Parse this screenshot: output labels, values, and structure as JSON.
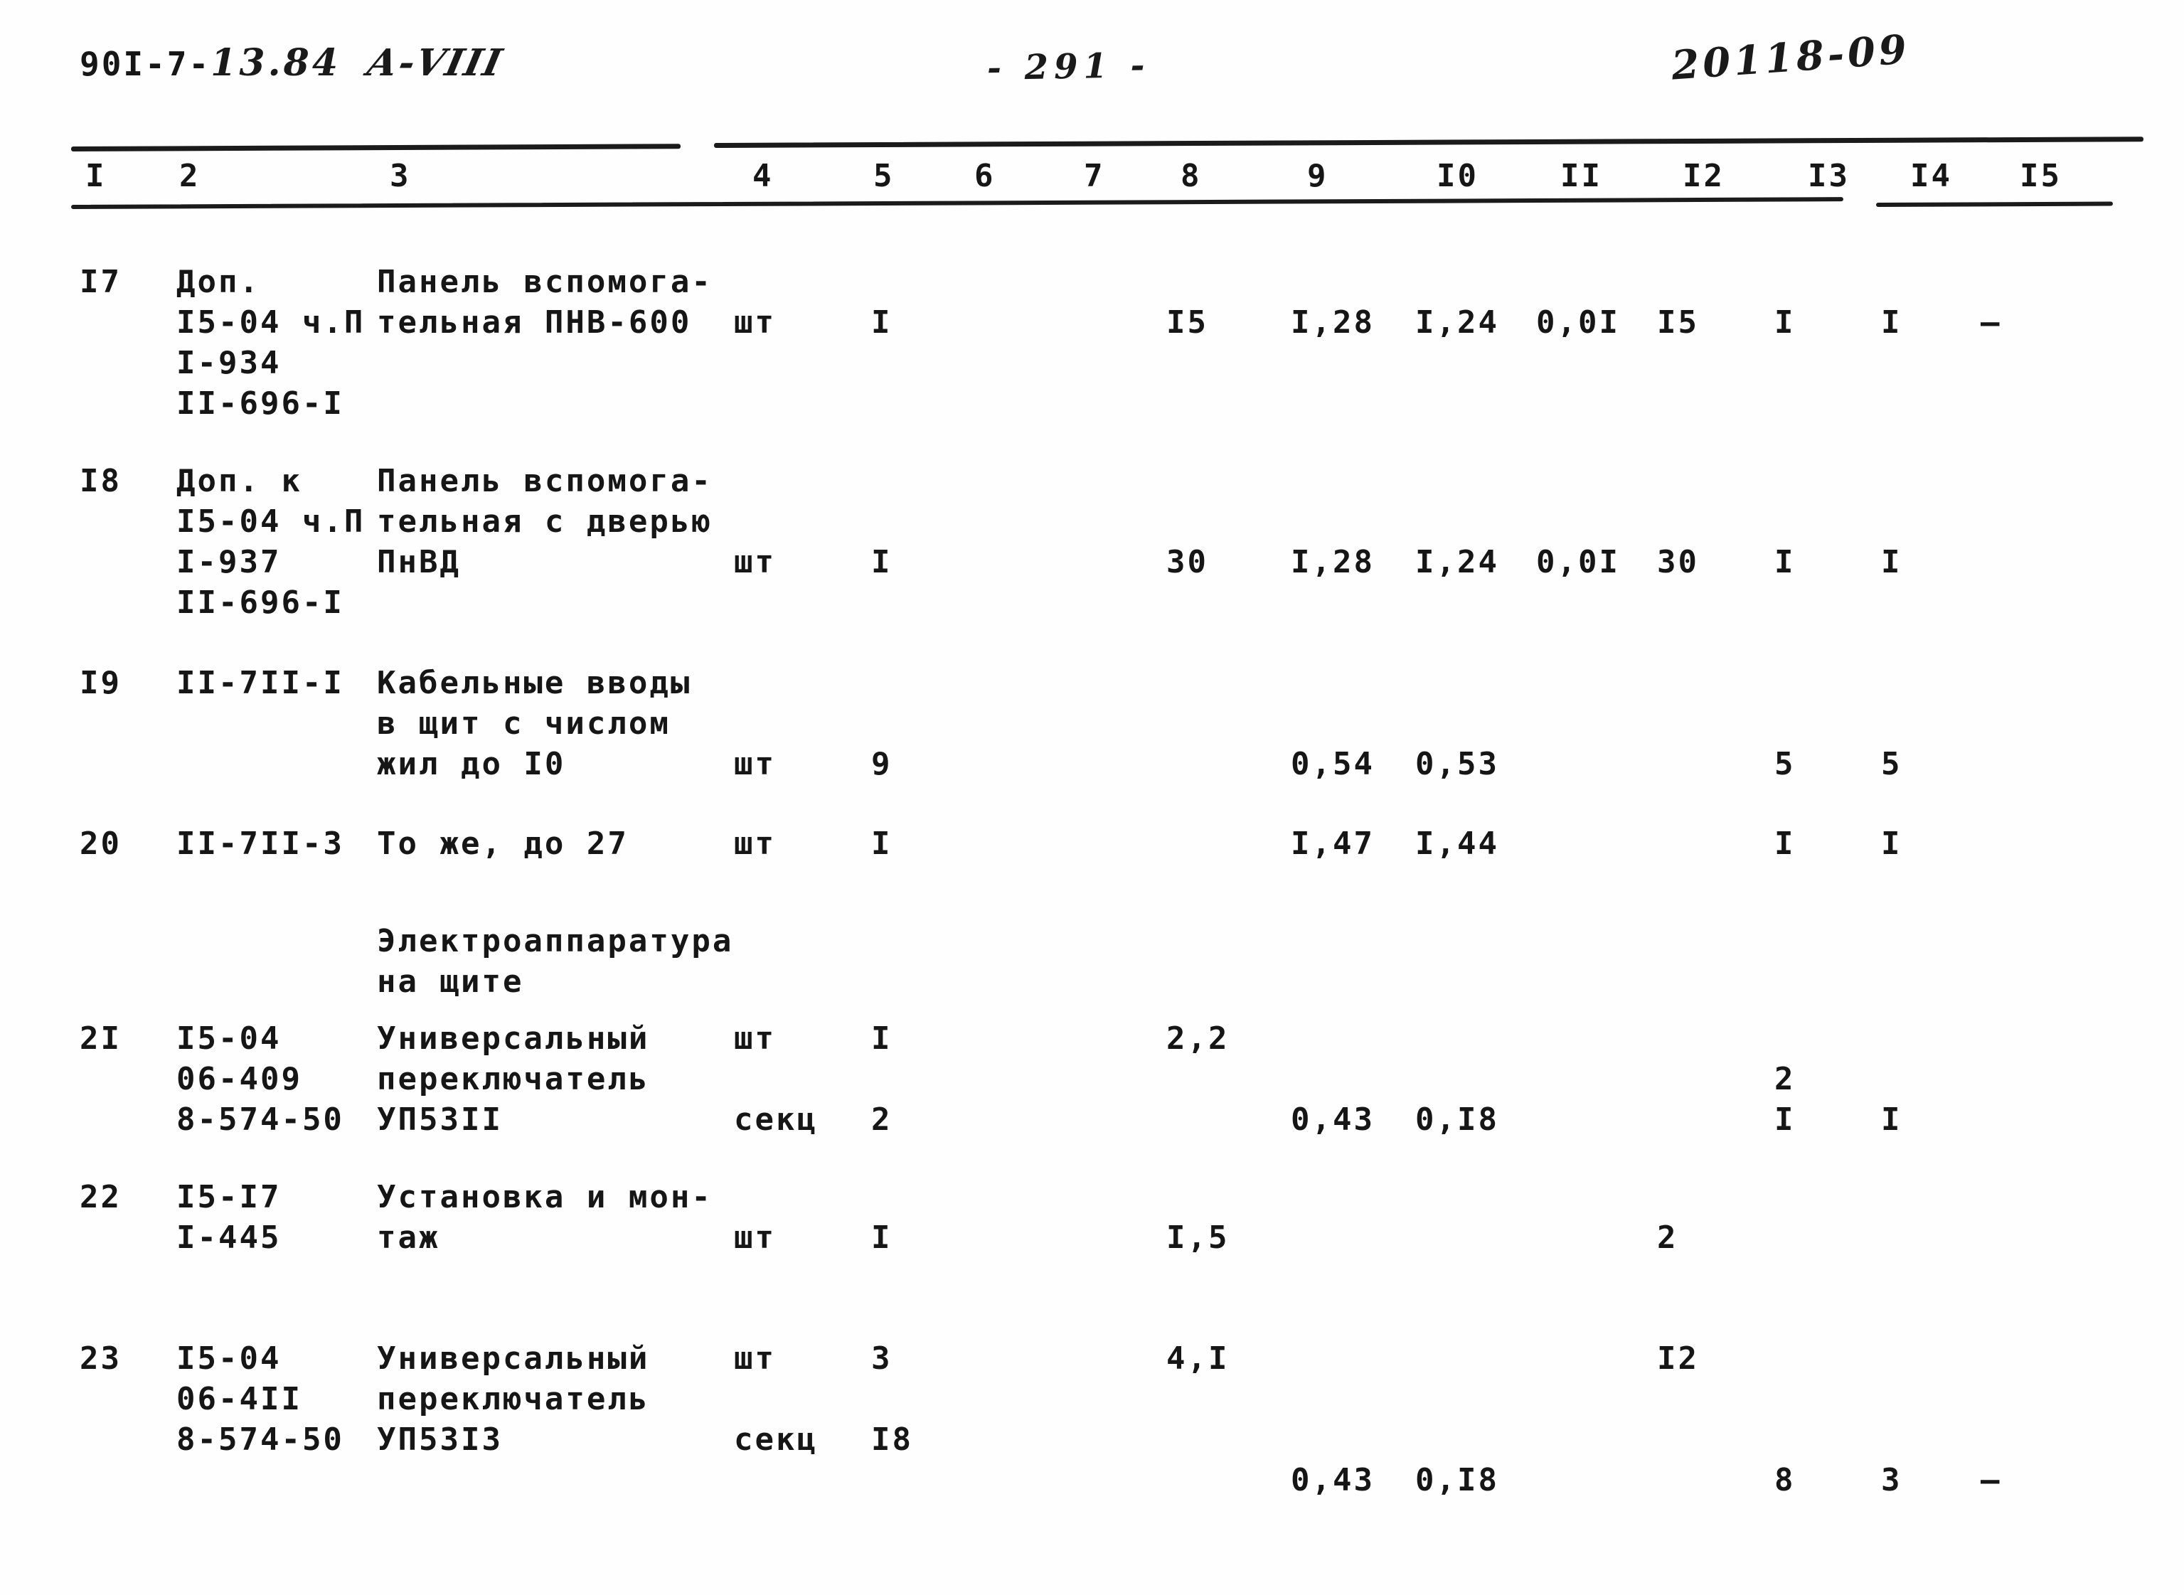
{
  "header": {
    "doc_prefix": "90I-7-",
    "doc_suffix": "13.84",
    "annex": "А-VIII",
    "page_number": "- 291 -",
    "stamp": "20118-09"
  },
  "table": {
    "columns": [
      "I",
      "2",
      "3",
      "4",
      "5",
      "6",
      "7",
      "8",
      "9",
      "I0",
      "II",
      "I2",
      "I3",
      "I4",
      "I5"
    ],
    "rows": [
      {
        "id": "row-17",
        "cells": {
          "1": [
            "I7"
          ],
          "2": [
            "Доп.",
            "I5-04 ч.П",
            "I-934",
            "II-696-I"
          ],
          "3": [
            "Панель вспомога-",
            "тельная ПНВ-600"
          ],
          "4": [
            "",
            "шт"
          ],
          "5": [
            "",
            "I"
          ],
          "8": [
            "",
            "I5"
          ],
          "9": [
            "",
            "I,28"
          ],
          "10": [
            "",
            "I,24"
          ],
          "11": [
            "",
            "0,0I"
          ],
          "12": [
            "",
            "I5"
          ],
          "13": [
            "",
            "I"
          ],
          "14": [
            "",
            "I"
          ],
          "15": [
            "",
            "—"
          ]
        }
      },
      {
        "id": "row-18",
        "cells": {
          "1": [
            "I8"
          ],
          "2": [
            "Доп. к",
            "I5-04 ч.П",
            "I-937",
            "II-696-I"
          ],
          "3": [
            "Панель вспомога-",
            "тельная с дверью",
            "ПнВД"
          ],
          "4": [
            "",
            "",
            "шт"
          ],
          "5": [
            "",
            "",
            "I"
          ],
          "8": [
            "",
            "",
            "30"
          ],
          "9": [
            "",
            "",
            "I,28"
          ],
          "10": [
            "",
            "",
            "I,24"
          ],
          "11": [
            "",
            "",
            "0,0I"
          ],
          "12": [
            "",
            "",
            "30"
          ],
          "13": [
            "",
            "",
            "I"
          ],
          "14": [
            "",
            "",
            "I"
          ]
        }
      },
      {
        "id": "row-19",
        "cells": {
          "1": [
            "I9"
          ],
          "2": [
            "II-7II-I"
          ],
          "3": [
            "Кабельные вводы",
            "в щит с числом",
            "жил до I0"
          ],
          "4": [
            "",
            "",
            "шт"
          ],
          "5": [
            "",
            "",
            "9"
          ],
          "9": [
            "",
            "",
            "0,54"
          ],
          "10": [
            "",
            "",
            "0,53"
          ],
          "13": [
            "",
            "",
            "5"
          ],
          "14": [
            "",
            "",
            "5"
          ]
        }
      },
      {
        "id": "row-20",
        "cells": {
          "1": [
            "20"
          ],
          "2": [
            "II-7II-3"
          ],
          "3": [
            "То же, до 27"
          ],
          "4": [
            "шт"
          ],
          "5": [
            "I"
          ],
          "9": [
            "I,47"
          ],
          "10": [
            "I,44"
          ],
          "13": [
            "I"
          ],
          "14": [
            "I"
          ]
        }
      },
      {
        "id": "section-heading",
        "cells": {
          "3": [
            "Электроаппаратура",
            "на щите"
          ]
        }
      },
      {
        "id": "row-21",
        "cells": {
          "1": [
            "2I"
          ],
          "2": [
            "I5-04",
            "06-409",
            "8-574-50"
          ],
          "3": [
            "Универсальный",
            "переключатель",
            "УП53II"
          ],
          "4": [
            "шт",
            "",
            "секц"
          ],
          "5": [
            "I",
            "",
            "2"
          ],
          "8": [
            "2,2"
          ],
          "9": [
            "",
            "",
            "0,43"
          ],
          "10": [
            "",
            "",
            "0,I8"
          ],
          "13": [
            "",
            "2",
            "I"
          ],
          "14": [
            "",
            "",
            "I"
          ]
        }
      },
      {
        "id": "row-22",
        "cells": {
          "1": [
            "22"
          ],
          "2": [
            "I5-I7",
            "I-445"
          ],
          "3": [
            "Установка и мон-",
            "таж"
          ],
          "4": [
            "",
            "шт"
          ],
          "5": [
            "",
            "I"
          ],
          "8": [
            "",
            "I,5"
          ],
          "12": [
            "",
            "2"
          ]
        }
      },
      {
        "id": "row-23",
        "cells": {
          "1": [
            "23"
          ],
          "2": [
            "I5-04",
            "06-4II",
            "8-574-50"
          ],
          "3": [
            "Универсальный",
            "переключатель",
            "УП53I3"
          ],
          "4": [
            "шт",
            "",
            "секц"
          ],
          "5": [
            "3",
            "",
            "I8"
          ],
          "8": [
            "4,I"
          ],
          "9": [
            "",
            "",
            "",
            "0,43"
          ],
          "10": [
            "",
            "",
            "",
            "0,I8"
          ],
          "12": [
            "I2"
          ],
          "13": [
            "",
            "",
            "",
            "8"
          ],
          "14": [
            "",
            "",
            "",
            "3"
          ],
          "15": [
            "",
            "",
            "",
            "—"
          ]
        }
      }
    ]
  }
}
